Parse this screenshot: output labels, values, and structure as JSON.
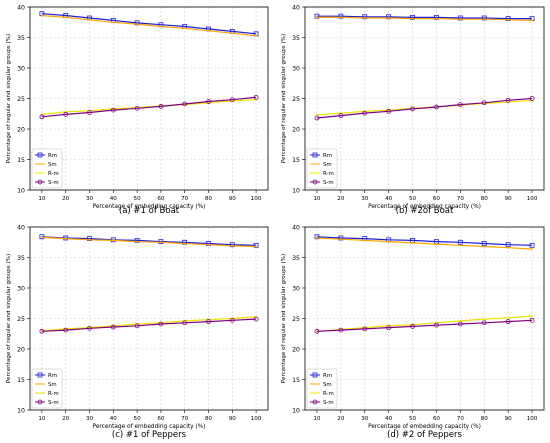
{
  "colors": {
    "Rm": "#1f1fd6",
    "Sm": "#ffa500",
    "R-m": "#e6e600",
    "S-m": "#800080"
  },
  "chart_data": [
    {
      "type": "line",
      "caption": "(a) #1 of Boat",
      "xlabel": "Percentage of embedding capacity (%)",
      "ylabel": "Percentage of regular and singular groups (%)",
      "x": [
        10,
        20,
        30,
        40,
        50,
        60,
        70,
        80,
        90,
        100
      ],
      "xlim": [
        5,
        105
      ],
      "ylim": [
        10,
        40
      ],
      "xticks": [
        "10",
        "20",
        "30",
        "40",
        "50",
        "60",
        "70",
        "80",
        "90",
        "100"
      ],
      "yticks": [
        "10",
        "15",
        "20",
        "25",
        "30",
        "35",
        "40"
      ],
      "grid": true,
      "legend": "lower left",
      "series": [
        {
          "name": "Rm",
          "values": [
            38.9,
            38.6,
            38.2,
            37.8,
            37.4,
            37.1,
            36.8,
            36.4,
            36.0,
            35.6
          ]
        },
        {
          "name": "Sm",
          "values": [
            38.6,
            38.3,
            37.9,
            37.5,
            37.2,
            36.8,
            36.5,
            36.1,
            35.7,
            35.3
          ]
        },
        {
          "name": "R-m",
          "values": [
            22.4,
            22.8,
            23.0,
            23.3,
            23.5,
            23.8,
            24.0,
            24.3,
            24.6,
            24.8
          ]
        },
        {
          "name": "S-m",
          "values": [
            22.0,
            22.4,
            22.7,
            23.1,
            23.4,
            23.7,
            24.1,
            24.5,
            24.8,
            25.2
          ]
        }
      ]
    },
    {
      "type": "line",
      "caption": "(b) #2of Boat",
      "xlabel": "Percentage of embedding capacity (%)",
      "ylabel": "Percentage of regular and singular groups (%)",
      "x": [
        10,
        20,
        30,
        40,
        50,
        60,
        70,
        80,
        90,
        100
      ],
      "xlim": [
        5,
        105
      ],
      "ylim": [
        10,
        40
      ],
      "xticks": [
        "10",
        "20",
        "30",
        "40",
        "50",
        "60",
        "70",
        "80",
        "90",
        "100"
      ],
      "yticks": [
        "10",
        "15",
        "20",
        "25",
        "30",
        "35",
        "40"
      ],
      "grid": true,
      "legend": "lower left",
      "series": [
        {
          "name": "Rm",
          "values": [
            38.5,
            38.5,
            38.4,
            38.4,
            38.3,
            38.3,
            38.2,
            38.2,
            38.1,
            38.1
          ]
        },
        {
          "name": "Sm",
          "values": [
            38.3,
            38.3,
            38.2,
            38.2,
            38.1,
            38.1,
            38.0,
            38.0,
            37.9,
            37.8
          ]
        },
        {
          "name": "R-m",
          "values": [
            22.3,
            22.6,
            22.9,
            23.1,
            23.4,
            23.6,
            23.9,
            24.2,
            24.4,
            24.7
          ]
        },
        {
          "name": "S-m",
          "values": [
            21.8,
            22.2,
            22.6,
            22.9,
            23.3,
            23.6,
            24.0,
            24.3,
            24.7,
            25.0
          ]
        }
      ]
    },
    {
      "type": "line",
      "caption": "(c) #1 of Peppers",
      "xlabel": "Percentage of embedding capacity (%)",
      "ylabel": "Percentage of regular and singular groups (%)",
      "x": [
        10,
        20,
        30,
        40,
        50,
        60,
        70,
        80,
        90,
        100
      ],
      "xlim": [
        5,
        105
      ],
      "ylim": [
        10,
        40
      ],
      "xticks": [
        "10",
        "20",
        "30",
        "40",
        "50",
        "60",
        "70",
        "80",
        "90",
        "100"
      ],
      "yticks": [
        "10",
        "15",
        "20",
        "25",
        "30",
        "35",
        "40"
      ],
      "grid": true,
      "legend": "lower left",
      "series": [
        {
          "name": "Rm",
          "values": [
            38.4,
            38.2,
            38.1,
            37.9,
            37.8,
            37.6,
            37.5,
            37.3,
            37.1,
            37.0
          ]
        },
        {
          "name": "Sm",
          "values": [
            38.3,
            38.1,
            37.9,
            37.8,
            37.6,
            37.5,
            37.3,
            37.1,
            36.9,
            36.8
          ]
        },
        {
          "name": "R-m",
          "values": [
            23.0,
            23.3,
            23.5,
            23.8,
            24.1,
            24.3,
            24.6,
            24.8,
            25.0,
            25.3
          ]
        },
        {
          "name": "S-m",
          "values": [
            22.9,
            23.1,
            23.4,
            23.6,
            23.8,
            24.1,
            24.3,
            24.5,
            24.7,
            24.9
          ]
        }
      ]
    },
    {
      "type": "line",
      "caption": "(d) #2 of Peppers",
      "xlabel": "Percentage of embedding capacity (%)",
      "ylabel": "Percentage of regular and singular groups (%)",
      "x": [
        10,
        20,
        30,
        40,
        50,
        60,
        70,
        80,
        90,
        100
      ],
      "xlim": [
        5,
        105
      ],
      "ylim": [
        10,
        40
      ],
      "xticks": [
        "10",
        "20",
        "30",
        "40",
        "50",
        "60",
        "70",
        "80",
        "90",
        "100"
      ],
      "yticks": [
        "10",
        "15",
        "20",
        "25",
        "30",
        "35",
        "40"
      ],
      "grid": true,
      "legend": "lower left",
      "series": [
        {
          "name": "Rm",
          "values": [
            38.4,
            38.2,
            38.1,
            37.9,
            37.8,
            37.6,
            37.5,
            37.3,
            37.1,
            37.0
          ]
        },
        {
          "name": "Sm",
          "values": [
            38.2,
            38.0,
            37.8,
            37.6,
            37.4,
            37.2,
            37.0,
            36.8,
            36.6,
            36.4
          ]
        },
        {
          "name": "R-m",
          "values": [
            22.9,
            23.2,
            23.5,
            23.8,
            24.0,
            24.3,
            24.6,
            24.9,
            25.1,
            25.4
          ]
        },
        {
          "name": "S-m",
          "values": [
            22.9,
            23.1,
            23.3,
            23.5,
            23.7,
            23.9,
            24.1,
            24.3,
            24.5,
            24.7
          ]
        }
      ]
    }
  ]
}
